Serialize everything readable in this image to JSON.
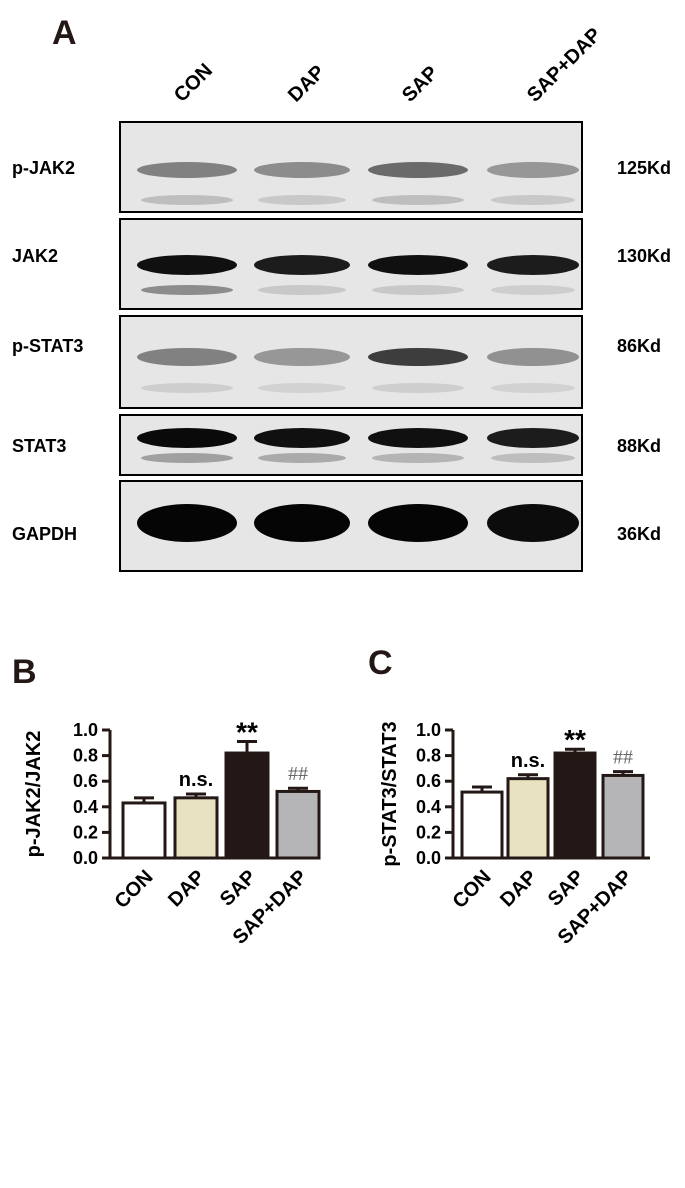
{
  "blot": {
    "panel_letter": "A",
    "lanes": [
      "CON",
      "DAP",
      "SAP",
      "SAP+DAP"
    ],
    "rows": [
      {
        "label": "p-JAK2",
        "kd": "125Kd",
        "intensities": [
          0.45,
          0.4,
          0.55,
          0.35
        ],
        "lower_band": [
          0.2,
          0.15,
          0.2,
          0.15
        ]
      },
      {
        "label": "JAK2",
        "kd": "130Kd",
        "intensities": [
          0.95,
          0.9,
          0.95,
          0.9
        ],
        "lower_band": [
          0.45,
          0.15,
          0.15,
          0.12
        ]
      },
      {
        "label": "p-STAT3",
        "kd": "86Kd",
        "intensities": [
          0.45,
          0.35,
          0.75,
          0.38
        ],
        "lower_band": [
          0.12,
          0.1,
          0.12,
          0.1
        ]
      },
      {
        "label": "STAT3",
        "kd": "88Kd",
        "intensities": [
          0.98,
          0.95,
          0.95,
          0.9
        ],
        "lower_band": [
          0.35,
          0.3,
          0.25,
          0.2
        ]
      },
      {
        "label": "GAPDH",
        "kd": "36Kd",
        "intensities": [
          1.0,
          1.0,
          1.0,
          0.97
        ],
        "lower_band": [
          0,
          0,
          0,
          0
        ]
      }
    ]
  },
  "chart_data": [
    {
      "panel_letter": "B",
      "type": "bar",
      "categories": [
        "CON",
        "DAP",
        "SAP",
        "SAP+DAP"
      ],
      "values": [
        0.43,
        0.47,
        0.82,
        0.52
      ],
      "errors": [
        0.04,
        0.03,
        0.09,
        0.025
      ],
      "significance": [
        "",
        "n.s.",
        "**",
        "##"
      ],
      "colors": [
        "#ffffff",
        "#e8e2c0",
        "#231815",
        "#b5b5b8"
      ],
      "ylabel": "p-JAK2/JAK2",
      "ylim": [
        0,
        1.0
      ],
      "yticks": [
        "0.0",
        "0.2",
        "0.4",
        "0.6",
        "0.8",
        "1.0"
      ]
    },
    {
      "panel_letter": "C",
      "type": "bar",
      "categories": [
        "CON",
        "DAP",
        "SAP",
        "SAP+DAP"
      ],
      "values": [
        0.515,
        0.62,
        0.82,
        0.645
      ],
      "errors": [
        0.04,
        0.03,
        0.03,
        0.03
      ],
      "significance": [
        "",
        "n.s.",
        "**",
        "##"
      ],
      "colors": [
        "#ffffff",
        "#e8e2c0",
        "#231815",
        "#b5b5b8"
      ],
      "ylabel": "p-STAT3/STAT3",
      "ylim": [
        0,
        1.0
      ],
      "yticks": [
        "0.0",
        "0.2",
        "0.4",
        "0.6",
        "0.8",
        "1.0"
      ]
    }
  ]
}
